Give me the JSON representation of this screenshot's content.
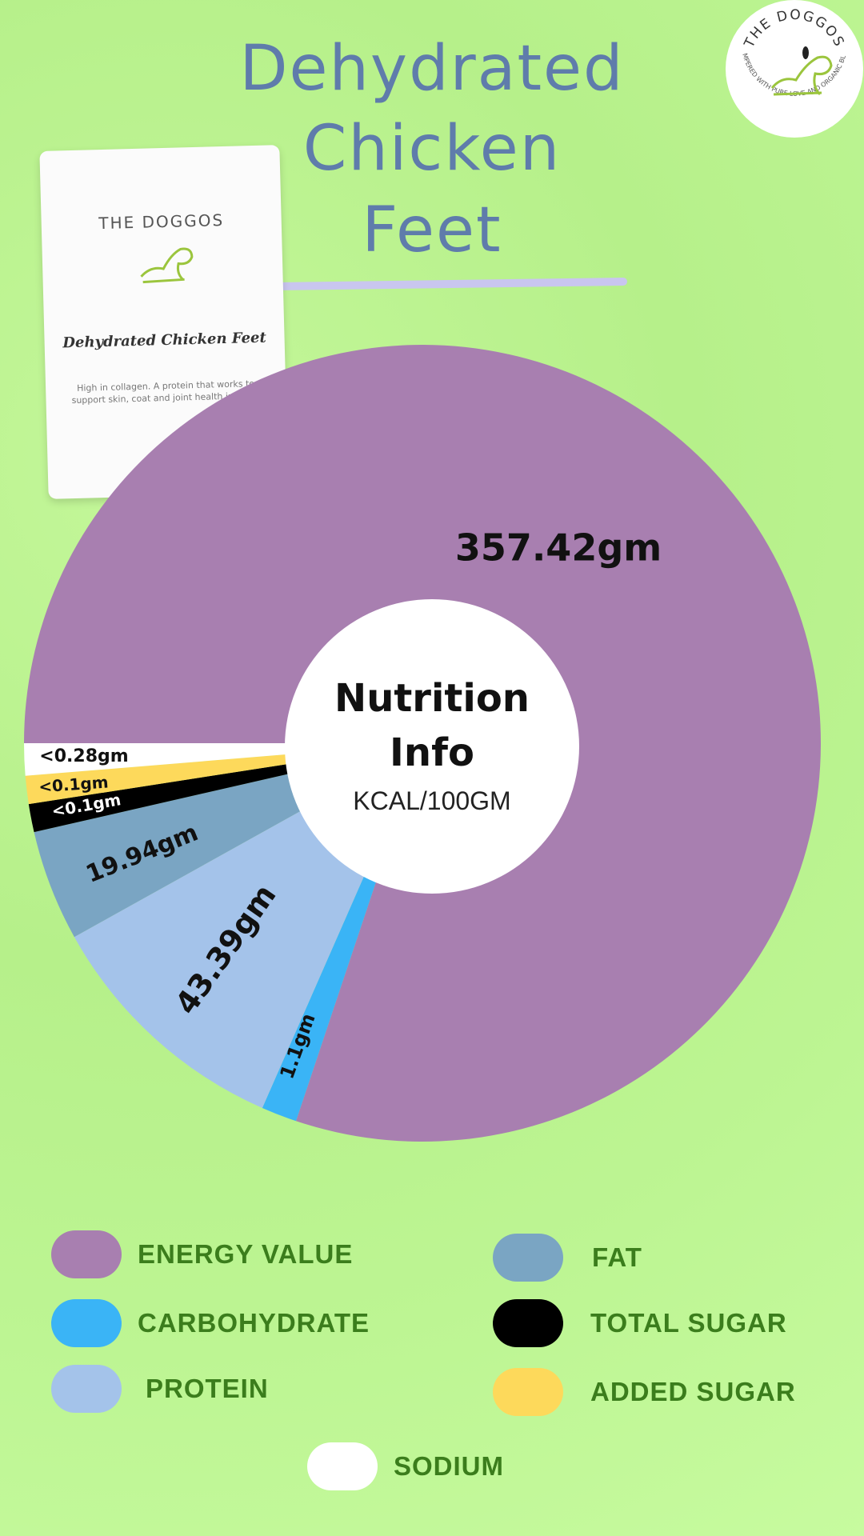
{
  "title": {
    "line1": "Dehydrated",
    "line2": "Chicken",
    "line3": "Feet"
  },
  "logo": {
    "brand": "THE DOGGOS",
    "tagline": "PAMPERED WITH PURE LOVE AND ORGANIC BLISS"
  },
  "product": {
    "brand": "THE DOGGOS",
    "name": "Dehydrated Chicken Feet",
    "description": "High in collagen. A protein that works to support skin, coat and joint health in dogs."
  },
  "center": {
    "title_line1": "Nutrition",
    "title_line2": "Info",
    "unit": "KCAL/100GM"
  },
  "chart_data": {
    "type": "pie",
    "style": "donut",
    "slices": [
      {
        "name": "ENERGY VALUE",
        "label": "357.42gm",
        "value": 357.42,
        "color": "#a87fb0"
      },
      {
        "name": "CARBOHYDRATE",
        "label": "1.1gm",
        "value": 1.1,
        "color": "#3ab4f6"
      },
      {
        "name": "PROTEIN",
        "label": "43.39gm",
        "value": 43.39,
        "color": "#a4c3ea"
      },
      {
        "name": "FAT",
        "label": "19.94gm",
        "value": 19.94,
        "color": "#7aa5c3"
      },
      {
        "name": "TOTAL SUGAR",
        "label": "<0.1gm",
        "value": 0.1,
        "color": "#000000"
      },
      {
        "name": "ADDED SUGAR",
        "label": "<0.1gm",
        "value": 0.1,
        "color": "#fdd95b"
      },
      {
        "name": "SODIUM",
        "label": "<0.28gm",
        "value": 0.28,
        "color": "#ffffff"
      }
    ],
    "legend": "bottom"
  }
}
